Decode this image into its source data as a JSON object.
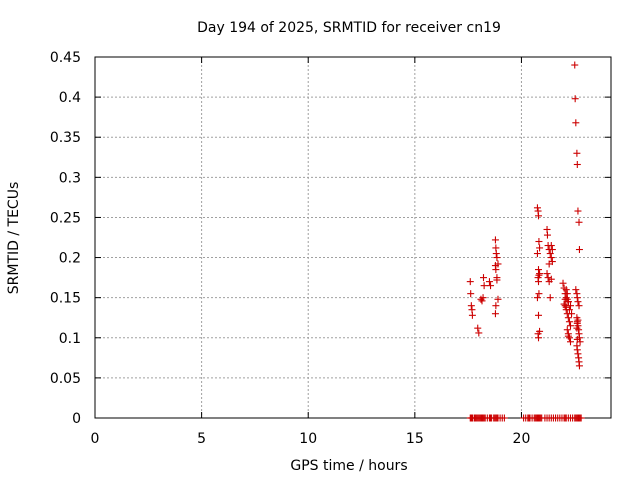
{
  "chart_data": {
    "type": "scatter",
    "title": "Day 194 of 2025, SRMTID for receiver cn19",
    "xlabel": "GPS time / hours",
    "ylabel": "SRMTID / TECUs",
    "xlim": [
      0,
      24.2
    ],
    "ylim": [
      0,
      0.45
    ],
    "xticks": [
      0,
      5,
      10,
      15,
      20
    ],
    "xtick_labels": [
      "0",
      "5",
      "10",
      "15",
      "20"
    ],
    "yticks": [
      0,
      0.05,
      0.1,
      0.15,
      0.2,
      0.25,
      0.3,
      0.35,
      0.4,
      0.45
    ],
    "ytick_labels": [
      "0",
      "0.05",
      "0.1",
      "0.15",
      "0.2",
      "0.25",
      "0.3",
      "0.35",
      "0.4",
      "0.45"
    ],
    "grid": true,
    "marker": "+",
    "series": [
      {
        "name": "SRMTID",
        "color": "#cc0000",
        "x": [
          17.6,
          17.62,
          17.65,
          17.68,
          17.7,
          17.72,
          17.8,
          17.85,
          17.9,
          17.95,
          18.0,
          18.05,
          18.1,
          18.15,
          18.2,
          18.25,
          18.3,
          18.4,
          18.5,
          18.55,
          18.6,
          18.7,
          18.75,
          18.8,
          18.85,
          18.9,
          19.0,
          19.1,
          19.2,
          20.1,
          20.2,
          20.3,
          20.35,
          20.4,
          20.5,
          20.6,
          20.65,
          20.7,
          20.75,
          20.8,
          20.85,
          20.9,
          20.95,
          21.1,
          21.2,
          21.3,
          21.4,
          21.5,
          21.6,
          21.7,
          21.8,
          21.9,
          22.0,
          22.05,
          22.1,
          22.2,
          22.3,
          22.4,
          22.5,
          22.55,
          22.6,
          22.65,
          22.7,
          22.75,
          22.8,
          17.6,
          17.62,
          17.65,
          17.68,
          17.7,
          17.95,
          18.0,
          18.1,
          18.15,
          18.2,
          18.22,
          18.25,
          18.5,
          18.55,
          18.78,
          18.8,
          18.82,
          18.85,
          18.9,
          18.78,
          18.8,
          18.85,
          18.9,
          18.8,
          18.78,
          18.85,
          20.75,
          20.78,
          20.8,
          20.82,
          20.85,
          20.75,
          20.8,
          20.85,
          20.78,
          20.8,
          20.82,
          20.75,
          20.8,
          20.85,
          20.78,
          20.8,
          20.82,
          21.2,
          21.22,
          21.25,
          21.3,
          21.35,
          21.4,
          21.45,
          21.2,
          21.25,
          21.3,
          21.4,
          21.45,
          21.35,
          21.3,
          21.4,
          21.95,
          22.0,
          22.05,
          22.1,
          22.15,
          22.2,
          22.05,
          22.1,
          22.15,
          22.2,
          22.25,
          22.3,
          22.0,
          22.1,
          22.15,
          22.2,
          22.25,
          22.3,
          22.35,
          22.1,
          22.15,
          22.2,
          22.05,
          22.3,
          22.25,
          22.2,
          22.5,
          22.52,
          22.55,
          22.6,
          22.62,
          22.65,
          22.7,
          22.72,
          22.55,
          22.6,
          22.62,
          22.65,
          22.7,
          22.6,
          22.62,
          22.65,
          22.68,
          22.7,
          22.72,
          22.75,
          22.6,
          22.62,
          22.65,
          22.68,
          22.7,
          22.72,
          22.6,
          22.62,
          22.65,
          22.62
        ],
        "y": [
          0,
          0,
          0,
          0,
          0,
          0,
          0,
          0,
          0,
          0,
          0,
          0,
          0,
          0,
          0,
          0,
          0,
          0,
          0,
          0,
          0,
          0,
          0,
          0,
          0,
          0,
          0,
          0,
          0,
          0,
          0,
          0,
          0,
          0,
          0,
          0,
          0,
          0,
          0,
          0,
          0,
          0,
          0,
          0,
          0,
          0,
          0,
          0,
          0,
          0,
          0,
          0,
          0,
          0,
          0,
          0,
          0,
          0,
          0,
          0,
          0,
          0,
          0,
          0,
          0,
          0.17,
          0.155,
          0.14,
          0.135,
          0.128,
          0.112,
          0.106,
          0.148,
          0.146,
          0.15,
          0.175,
          0.165,
          0.17,
          0.165,
          0.222,
          0.212,
          0.205,
          0.2,
          0.192,
          0.19,
          0.185,
          0.172,
          0.148,
          0.14,
          0.13,
          0.175,
          0.262,
          0.258,
          0.252,
          0.22,
          0.212,
          0.205,
          0.185,
          0.18,
          0.175,
          0.17,
          0.155,
          0.15,
          0.128,
          0.108,
          0.105,
          0.1,
          0.178,
          0.235,
          0.228,
          0.215,
          0.21,
          0.205,
          0.2,
          0.195,
          0.18,
          0.175,
          0.17,
          0.215,
          0.21,
          0.15,
          0.192,
          0.173,
          0.168,
          0.162,
          0.155,
          0.15,
          0.148,
          0.145,
          0.14,
          0.135,
          0.13,
          0.125,
          0.12,
          0.115,
          0.142,
          0.138,
          0.11,
          0.105,
          0.1,
          0.095,
          0.13,
          0.16,
          0.155,
          0.145,
          0.148,
          0.14,
          0.135,
          0.102,
          0.44,
          0.398,
          0.368,
          0.33,
          0.316,
          0.258,
          0.244,
          0.21,
          0.16,
          0.155,
          0.15,
          0.145,
          0.14,
          0.125,
          0.12,
          0.115,
          0.11,
          0.105,
          0.1,
          0.095,
          0.09,
          0.085,
          0.08,
          0.075,
          0.07,
          0.065,
          0.112,
          0.118,
          0.122,
          0.098
        ]
      }
    ]
  }
}
